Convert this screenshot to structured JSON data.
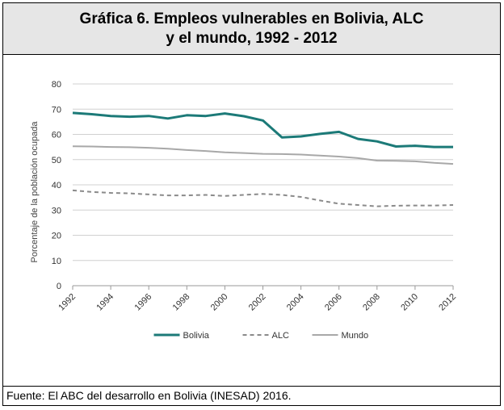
{
  "figure": {
    "title_line1": "Gráfica 6.  Empleos vulnerables en Bolivia, ALC",
    "title_line2": "y el mundo, 1992 - 2012",
    "source": "Fuente: El ABC del desarrollo en Bolivia (INESAD) 2016."
  },
  "chart_data": {
    "type": "line",
    "title": "",
    "xlabel": "",
    "ylabel": "Porcentaje de la población ocupada",
    "ylim": [
      0,
      80
    ],
    "yticks": [
      0,
      10,
      20,
      30,
      40,
      50,
      60,
      70,
      80
    ],
    "xlim": [
      1992,
      2012
    ],
    "xticks": [
      "1992",
      "1994",
      "1996",
      "1998",
      "2000",
      "2002",
      "2004",
      "2006",
      "2008",
      "2010",
      "2012"
    ],
    "grid": true,
    "legend_position": "bottom",
    "x": [
      1992,
      1993,
      1994,
      1995,
      1996,
      1997,
      1998,
      1999,
      2000,
      2001,
      2002,
      2003,
      2004,
      2005,
      2006,
      2007,
      2008,
      2009,
      2010,
      2011,
      2012
    ],
    "series": [
      {
        "name": "Bolivia",
        "color": "#1c7a78",
        "style": "solid",
        "values": [
          68.5,
          68,
          67.3,
          67,
          67.3,
          66.3,
          67.6,
          67.3,
          68.3,
          67.2,
          65.5,
          58.8,
          59.2,
          60.2,
          61,
          58.2,
          57.2,
          55.2,
          55.5,
          55,
          55
        ]
      },
      {
        "name": "ALC",
        "color": "#8a8a8a",
        "style": "dashed",
        "values": [
          37.8,
          37.2,
          36.8,
          36.6,
          36.2,
          35.8,
          35.8,
          36,
          35.6,
          36,
          36.4,
          36,
          35.2,
          33.8,
          32.5,
          32,
          31.5,
          31.7,
          31.8,
          31.8,
          32
        ]
      },
      {
        "name": "Mundo",
        "color": "#a8a8a8",
        "style": "solid",
        "values": [
          55.3,
          55.2,
          55,
          54.9,
          54.7,
          54.3,
          53.8,
          53.4,
          52.9,
          52.6,
          52.3,
          52.2,
          52,
          51.6,
          51.2,
          50.6,
          49.6,
          49.5,
          49.3,
          48.7,
          48.3
        ]
      }
    ]
  }
}
